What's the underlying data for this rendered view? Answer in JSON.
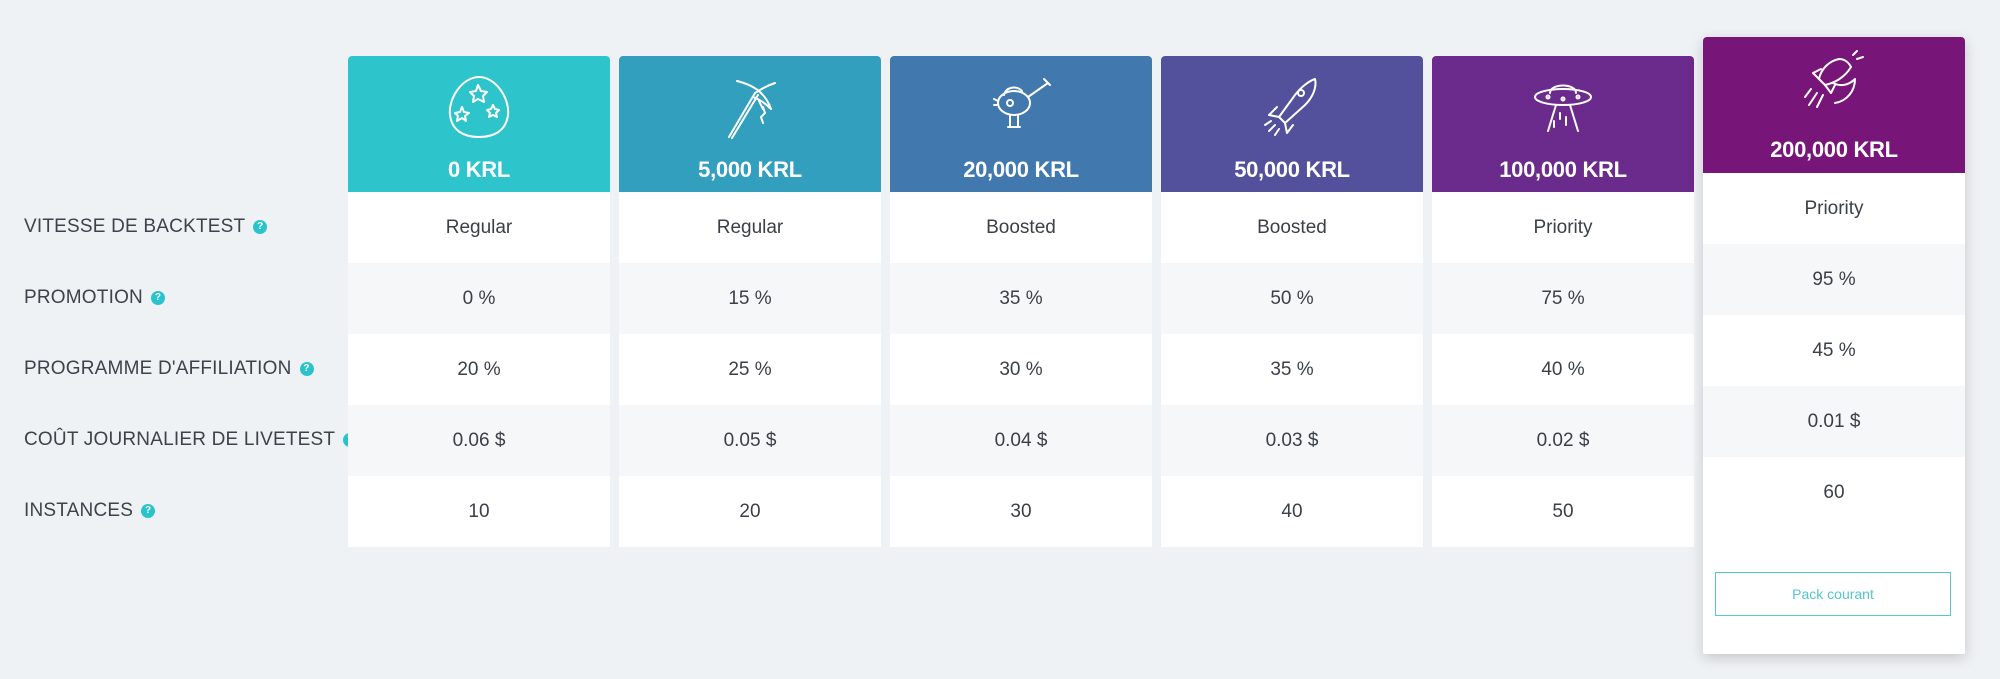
{
  "rows": [
    {
      "label": "VITESSE DE BACKTEST",
      "help": "?"
    },
    {
      "label": "PROMOTION",
      "help": "?"
    },
    {
      "label": "PROGRAMME D'AFFILIATION",
      "help": "?"
    },
    {
      "label": "COÛT JOURNALIER DE LIVETEST",
      "help": "?"
    },
    {
      "label": "INSTANCES",
      "help": "?"
    }
  ],
  "packs": [
    {
      "price": "0 KRL",
      "icon": "egg-icon",
      "color": "#2ec4cc",
      "values": [
        "Regular",
        "0 %",
        "20 %",
        "0.06 $",
        "10"
      ]
    },
    {
      "price": "5,000 KRL",
      "icon": "pickaxe-icon",
      "color": "#339fbf",
      "values": [
        "Regular",
        "15 %",
        "25 %",
        "0.05 $",
        "20"
      ]
    },
    {
      "price": "20,000 KRL",
      "icon": "ray-gun-icon",
      "color": "#4178ad",
      "values": [
        "Boosted",
        "35 %",
        "30 %",
        "0.04 $",
        "30"
      ]
    },
    {
      "price": "50,000 KRL",
      "icon": "rocket-icon",
      "color": "#53519c",
      "values": [
        "Boosted",
        "50 %",
        "35 %",
        "0.03 $",
        "40"
      ]
    },
    {
      "price": "100,000 KRL",
      "icon": "ufo-icon",
      "color": "#6a2b8c",
      "values": [
        "Priority",
        "75 %",
        "40 %",
        "0.02 $",
        "50"
      ]
    },
    {
      "price": "200,000 KRL",
      "icon": "spaceship-icon",
      "color": "#781579",
      "values": [
        "Priority",
        "95 %",
        "45 %",
        "0.01 $",
        "60"
      ],
      "current_label": "Pack courant"
    }
  ]
}
